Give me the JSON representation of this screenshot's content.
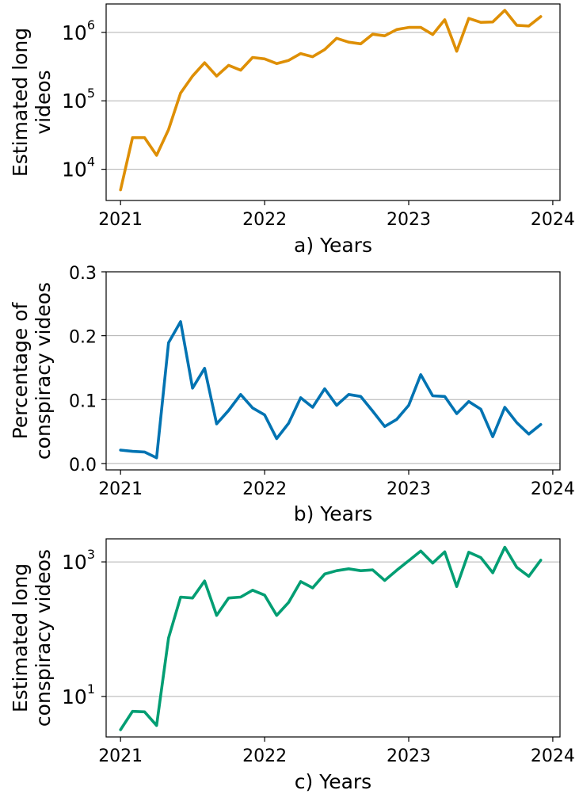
{
  "chart_data": [
    {
      "type": "line",
      "scale": "log",
      "ylabel": [
        "Estimated long",
        "videos"
      ],
      "xlabel": "a) Years",
      "xlim": [
        2020.9,
        2024.05
      ],
      "ylim": [
        3500,
        2600000
      ],
      "x_ticks": [
        {
          "value": 2021,
          "label": "2021"
        },
        {
          "value": 2022,
          "label": "2022"
        },
        {
          "value": 2023,
          "label": "2023"
        },
        {
          "value": 2024,
          "label": "2024"
        }
      ],
      "y_ticks": [
        {
          "value": 10000,
          "base": "10",
          "exp": "4"
        },
        {
          "value": 100000,
          "base": "10",
          "exp": "5"
        },
        {
          "value": 1000000,
          "base": "10",
          "exp": "6"
        }
      ],
      "grid": "y",
      "series": [
        {
          "color": "#DE8F05",
          "x": [
            "2021-01",
            "2021-02",
            "2021-03",
            "2021-04",
            "2021-05",
            "2021-06",
            "2021-07",
            "2021-08",
            "2021-09",
            "2021-10",
            "2021-11",
            "2021-12",
            "2022-01",
            "2022-02",
            "2022-03",
            "2022-04",
            "2022-05",
            "2022-06",
            "2022-07",
            "2022-08",
            "2022-09",
            "2022-10",
            "2022-11",
            "2022-12",
            "2023-01",
            "2023-02",
            "2023-03",
            "2023-04",
            "2023-05",
            "2023-06",
            "2023-07",
            "2023-08",
            "2023-09",
            "2023-10",
            "2023-11",
            "2023-12"
          ],
          "values": [
            5000,
            29000,
            29000,
            16000,
            38000,
            130000,
            230000,
            360000,
            230000,
            330000,
            280000,
            430000,
            410000,
            350000,
            390000,
            490000,
            440000,
            560000,
            820000,
            720000,
            680000,
            940000,
            890000,
            1100000,
            1180000,
            1180000,
            930000,
            1530000,
            530000,
            1600000,
            1400000,
            1420000,
            2100000,
            1270000,
            1240000,
            1700000
          ]
        }
      ]
    },
    {
      "type": "line",
      "scale": "linear",
      "ylabel": [
        "Percentage of",
        "conspiracy videos"
      ],
      "xlabel": "b) Years",
      "xlim": [
        2020.9,
        2024.05
      ],
      "ylim": [
        -0.01,
        0.3
      ],
      "x_ticks": [
        {
          "value": 2021,
          "label": "2021"
        },
        {
          "value": 2022,
          "label": "2022"
        },
        {
          "value": 2023,
          "label": "2023"
        },
        {
          "value": 2024,
          "label": "2024"
        }
      ],
      "y_ticks": [
        {
          "value": 0.0,
          "label": "0.0"
        },
        {
          "value": 0.1,
          "label": "0.1"
        },
        {
          "value": 0.2,
          "label": "0.2"
        },
        {
          "value": 0.3,
          "label": "0.3"
        }
      ],
      "grid": "y",
      "series": [
        {
          "color": "#0173B2",
          "x": [
            "2021-01",
            "2021-02",
            "2021-03",
            "2021-04",
            "2021-05",
            "2021-06",
            "2021-07",
            "2021-08",
            "2021-09",
            "2021-10",
            "2021-11",
            "2021-12",
            "2022-01",
            "2022-02",
            "2022-03",
            "2022-04",
            "2022-05",
            "2022-06",
            "2022-07",
            "2022-08",
            "2022-09",
            "2022-10",
            "2022-11",
            "2022-12",
            "2023-01",
            "2023-02",
            "2023-03",
            "2023-04",
            "2023-05",
            "2023-06",
            "2023-07",
            "2023-08",
            "2023-09",
            "2023-10",
            "2023-11",
            "2023-12"
          ],
          "values": [
            0.021,
            0.019,
            0.018,
            0.009,
            0.189,
            0.222,
            0.118,
            0.149,
            0.062,
            0.083,
            0.108,
            0.087,
            0.076,
            0.039,
            0.063,
            0.103,
            0.088,
            0.117,
            0.091,
            0.108,
            0.105,
            0.082,
            0.058,
            0.069,
            0.091,
            0.139,
            0.106,
            0.105,
            0.078,
            0.097,
            0.085,
            0.042,
            0.088,
            0.064,
            0.046,
            0.061
          ]
        }
      ]
    },
    {
      "type": "line",
      "scale": "log",
      "ylabel": [
        "Estimated long",
        "conspiracy videos"
      ],
      "xlabel": "c) Years",
      "xlim": [
        2020.9,
        2024.05
      ],
      "ylim": [
        2.5,
        2200
      ],
      "x_ticks": [
        {
          "value": 2021,
          "label": "2021"
        },
        {
          "value": 2022,
          "label": "2022"
        },
        {
          "value": 2023,
          "label": "2023"
        },
        {
          "value": 2024,
          "label": "2024"
        }
      ],
      "y_ticks": [
        {
          "value": 10,
          "base": "10",
          "exp": "1"
        },
        {
          "value": 1000,
          "base": "10",
          "exp": "3"
        }
      ],
      "grid": "y",
      "series": [
        {
          "color": "#029E73",
          "x": [
            "2021-01",
            "2021-02",
            "2021-03",
            "2021-04",
            "2021-05",
            "2021-06",
            "2021-07",
            "2021-08",
            "2021-09",
            "2021-10",
            "2021-11",
            "2021-12",
            "2022-01",
            "2022-02",
            "2022-03",
            "2022-04",
            "2022-05",
            "2022-06",
            "2022-07",
            "2022-08",
            "2022-09",
            "2022-10",
            "2022-11",
            "2022-12",
            "2023-01",
            "2023-02",
            "2023-03",
            "2023-04",
            "2023-05",
            "2023-06",
            "2023-07",
            "2023-08",
            "2023-09",
            "2023-10",
            "2023-11",
            "2023-12"
          ],
          "values": [
            3.2,
            6.0,
            5.9,
            3.7,
            74,
            300,
            290,
            520,
            160,
            290,
            300,
            380,
            320,
            160,
            250,
            510,
            410,
            660,
            740,
            790,
            740,
            760,
            530,
            750,
            1040,
            1450,
            960,
            1410,
            430,
            1390,
            1160,
            690,
            1650,
            830,
            610,
            1060
          ]
        }
      ]
    }
  ]
}
